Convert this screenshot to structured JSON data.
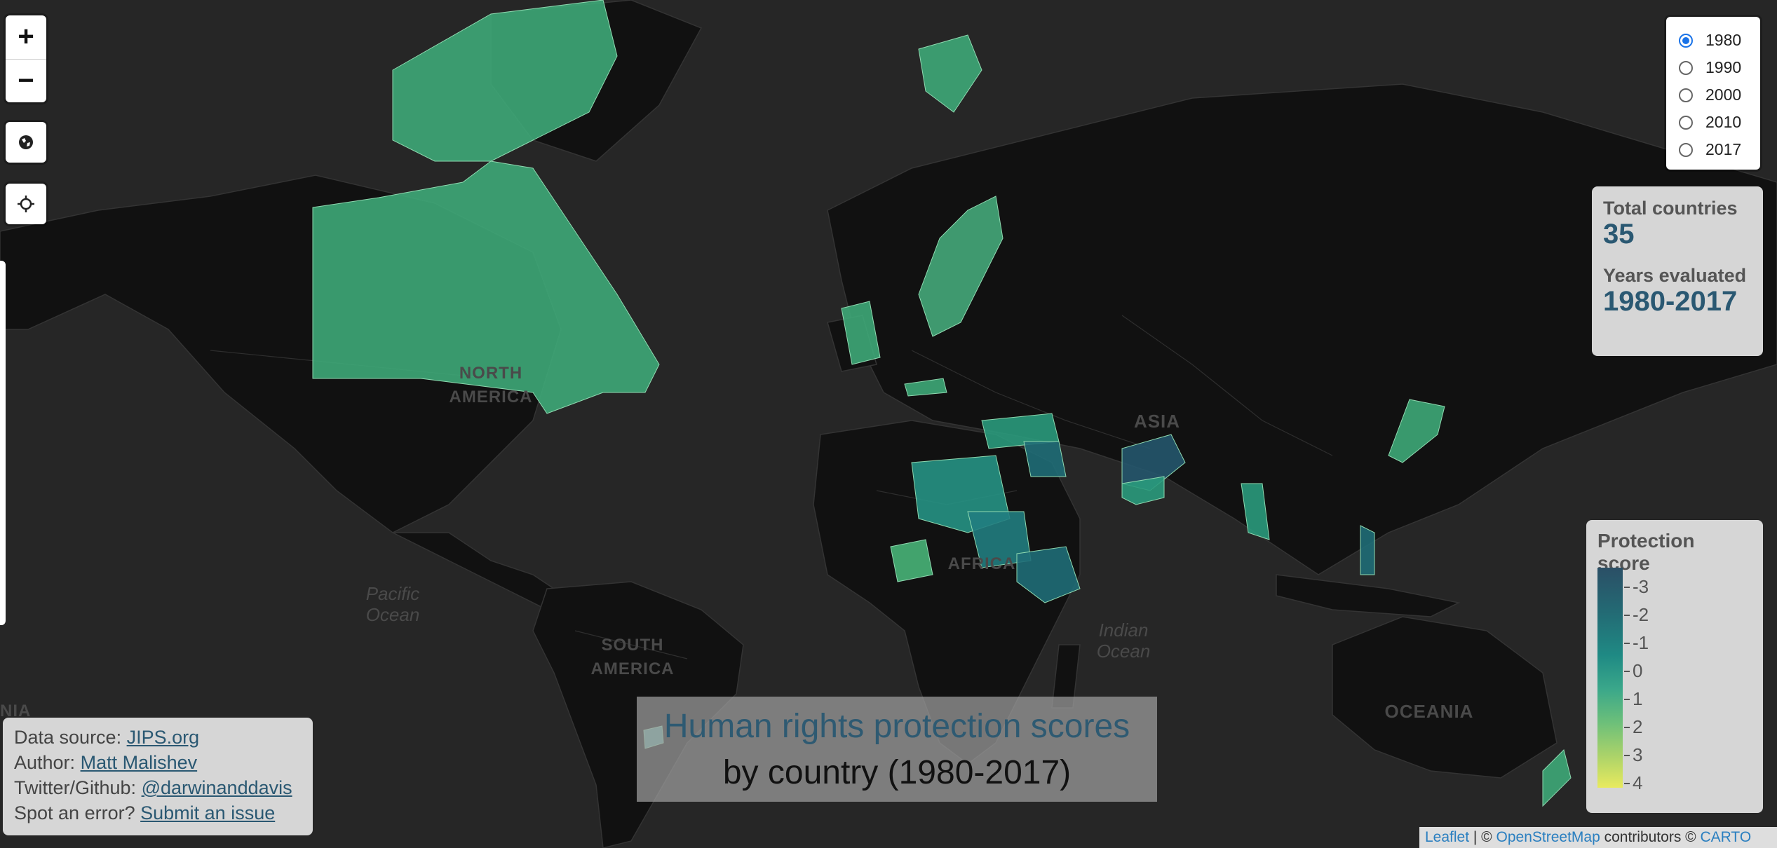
{
  "map": {
    "region_labels": [
      "NORTH",
      "AMERICA",
      "ASIA",
      "AFRICA",
      "SOUTH",
      "AMERICA",
      "OCEANIA"
    ],
    "ocean_labels": [
      "Pacific",
      "Ocean",
      "Indian",
      "Ocean"
    ],
    "edge_label": "NIA"
  },
  "controls": {
    "zoom_in": "+",
    "zoom_out": "−"
  },
  "year_selector": {
    "options": [
      "1980",
      "1990",
      "2000",
      "2010",
      "2017"
    ],
    "selected": "1980"
  },
  "stats": {
    "total_countries_label": "Total countries",
    "total_countries_value": "35",
    "years_label": "Years evaluated",
    "years_value": "1980-2017"
  },
  "legend": {
    "title": "Protection score",
    "ticks": [
      "-3",
      "-2",
      "-1",
      "0",
      "1",
      "2",
      "3",
      "4"
    ],
    "colors": [
      "#2b4f66",
      "#236a74",
      "#1f8a84",
      "#3aa78a",
      "#6bbf7a",
      "#a9d26a",
      "#e8ea5e"
    ]
  },
  "info": {
    "source_label": "Data source:",
    "source_link": "JIPS.org",
    "author_label": "Author:",
    "author_link": "Matt Malishev",
    "social_label": "Twitter/Github:",
    "social_link": "@darwinanddavis",
    "error_label": "Spot an error?",
    "error_link": "Submit an issue"
  },
  "title": {
    "main": "Human rights protection scores",
    "sub": "by country (1980-2017)"
  },
  "attribution": {
    "leaflet": "Leaflet",
    "sep": " | © ",
    "osm": "OpenStreetMap",
    "contrib": " contributors © ",
    "carto": "CARTO"
  }
}
